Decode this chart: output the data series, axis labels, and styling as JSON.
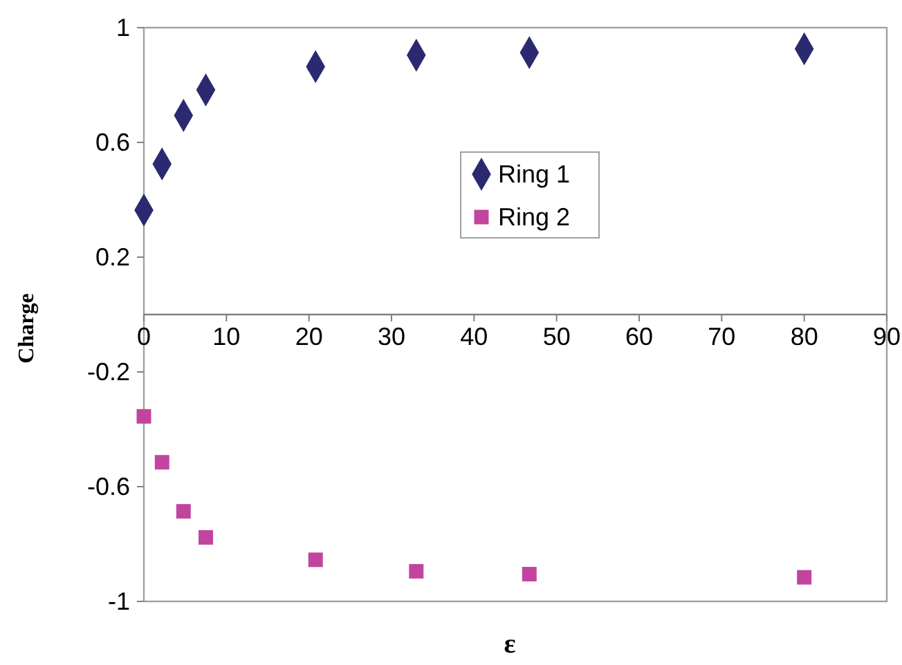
{
  "chart_data": {
    "type": "scatter",
    "xlabel": "ε",
    "ylabel": "Charge",
    "xlim": [
      0,
      90
    ],
    "xticks": [
      0,
      10,
      20,
      30,
      40,
      50,
      60,
      70,
      80,
      90
    ],
    "ylim": [
      -1,
      1
    ],
    "yticks": [
      -1,
      -0.6,
      -0.2,
      0.2,
      0.6,
      1
    ],
    "grid": false,
    "legend": "right",
    "x": [
      0,
      2.2,
      4.8,
      7.5,
      20.8,
      33,
      46.7,
      80
    ],
    "series": [
      {
        "name": "Ring 1",
        "color": "#2b2a70",
        "marker": "diamond",
        "values": [
          0.364,
          0.525,
          0.694,
          0.783,
          0.864,
          0.904,
          0.913,
          0.926
        ]
      },
      {
        "name": "Ring 2",
        "color": "#c2449e",
        "marker": "square",
        "values": [
          -0.355,
          -0.515,
          -0.686,
          -0.777,
          -0.855,
          -0.895,
          -0.905,
          -0.916
        ]
      }
    ]
  }
}
